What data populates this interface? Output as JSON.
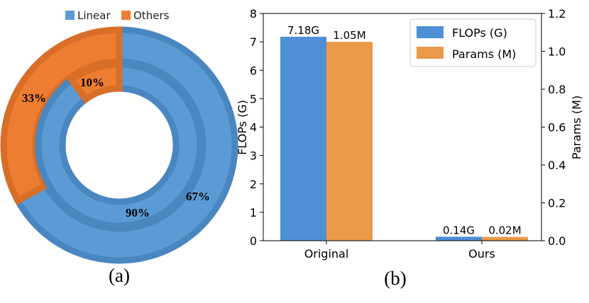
{
  "colors": {
    "linear": "#5b9bd5",
    "linear_edge": "#4a86c0",
    "others": "#ed7d31",
    "others_edge": "#d86e27",
    "flops_bar": "#4f8fd6",
    "params_bar": "#ea9a48"
  },
  "panel_a": {
    "caption": "(a)",
    "legend": [
      {
        "label": "Linear",
        "color": "#5b9bd5"
      },
      {
        "label": "Others",
        "color": "#ed7d31"
      }
    ]
  },
  "panel_b": {
    "caption": "(b)"
  },
  "chart_data": [
    {
      "type": "pie",
      "subtype": "nested-donut",
      "categories": [
        "Linear",
        "Others"
      ],
      "series": [
        {
          "ring": "outer",
          "values": [
            67,
            33
          ],
          "labels": [
            "67%",
            "33%"
          ]
        },
        {
          "ring": "inner",
          "values": [
            90,
            10
          ],
          "labels": [
            "90%",
            "10%"
          ]
        }
      ],
      "legend_position": "top"
    },
    {
      "type": "bar",
      "categories": [
        "Original",
        "Ours"
      ],
      "series": [
        {
          "name": "FLOPs (G)",
          "axis": "left",
          "values": [
            7.18,
            0.14
          ],
          "labels": [
            "7.18G",
            "0.14G"
          ]
        },
        {
          "name": "Params (M)",
          "axis": "right",
          "values": [
            1.05,
            0.02
          ],
          "labels": [
            "1.05M",
            "0.02M"
          ]
        }
      ],
      "ylabel": "FLOPs (G)",
      "ylabel_right": "Params (M)",
      "ylim": [
        0,
        8
      ],
      "ylim_right": [
        0,
        1.2
      ],
      "yticks": [
        "0",
        "1",
        "2",
        "3",
        "4",
        "5",
        "6",
        "7",
        "8"
      ],
      "yticks_right": [
        "0.0",
        "0.2",
        "0.4",
        "0.6",
        "0.8",
        "1.0",
        "1.2"
      ],
      "legend_position": "top-right",
      "grid": false
    }
  ]
}
